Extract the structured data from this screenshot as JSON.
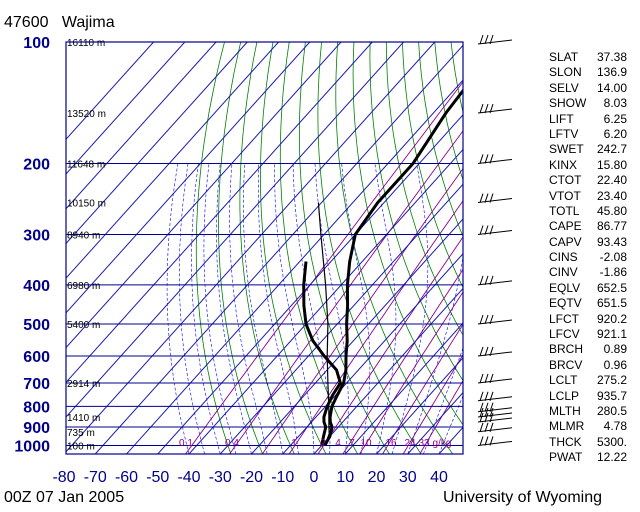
{
  "header": {
    "station_id": "47600",
    "station_name": "Wajima"
  },
  "footer": {
    "date": "00Z 07 Jan 2005",
    "source": "University of Wyoming"
  },
  "colors": {
    "frame": "#00008b",
    "isotherm": "#1a1ab4",
    "dry_adiabat": "#008000",
    "moist_adiabat": "#0000ff",
    "mixing_ratio": "#8b008b",
    "profile": "#000000"
  },
  "chart_data": {
    "type": "skew-t",
    "pressure_levels": [
      100,
      200,
      300,
      400,
      500,
      600,
      700,
      800,
      900,
      1000
    ],
    "pressure_labels": [
      "100",
      "200",
      "300",
      "400",
      "500",
      "600",
      "700",
      "800",
      "900",
      "1000"
    ],
    "temperature_ticks": [
      "-80",
      "-70",
      "-60",
      "-50",
      "-40",
      "-30",
      "-20",
      "-10",
      "0",
      "10",
      "20",
      "30",
      "40"
    ],
    "height_labels": [
      {
        "p": 100,
        "text": "16110 m"
      },
      {
        "p": 150,
        "text": "13520 m"
      },
      {
        "p": 200,
        "text": "11648 m"
      },
      {
        "p": 250,
        "text": "10150 m"
      },
      {
        "p": 300,
        "text": "8940 m"
      },
      {
        "p": 400,
        "text": "6980 m"
      },
      {
        "p": 500,
        "text": "5400 m"
      },
      {
        "p": 700,
        "text": "2914 m"
      },
      {
        "p": 850,
        "text": "1410 m"
      },
      {
        "p": 925,
        "text": "735 m"
      },
      {
        "p": 1000,
        "text": "100 m"
      }
    ],
    "mixing_ratio_labels": [
      "0.1",
      "0.4",
      "1",
      "2",
      "4",
      "7",
      "10",
      "16",
      "24",
      "33",
      "g/kg"
    ],
    "temperature_profile": [
      {
        "p": 1000,
        "t": 1
      },
      {
        "p": 975,
        "t": 0.5
      },
      {
        "p": 950,
        "t": 0
      },
      {
        "p": 925,
        "t": -1
      },
      {
        "p": 900,
        "t": -2
      },
      {
        "p": 875,
        "t": -4
      },
      {
        "p": 850,
        "t": -5.5
      },
      {
        "p": 800,
        "t": -8
      },
      {
        "p": 750,
        "t": -9.5
      },
      {
        "p": 700,
        "t": -11
      },
      {
        "p": 650,
        "t": -14
      },
      {
        "p": 600,
        "t": -18
      },
      {
        "p": 550,
        "t": -22
      },
      {
        "p": 500,
        "t": -27
      },
      {
        "p": 450,
        "t": -32
      },
      {
        "p": 400,
        "t": -38
      },
      {
        "p": 350,
        "t": -44
      },
      {
        "p": 300,
        "t": -50
      },
      {
        "p": 250,
        "t": -52
      },
      {
        "p": 200,
        "t": -52
      },
      {
        "p": 150,
        "t": -56
      },
      {
        "p": 100,
        "t": -59
      }
    ],
    "dewpoint_profile": [
      {
        "p": 1000,
        "t": 0
      },
      {
        "p": 975,
        "t": -1
      },
      {
        "p": 950,
        "t": -2
      },
      {
        "p": 925,
        "t": -3
      },
      {
        "p": 900,
        "t": -4
      },
      {
        "p": 875,
        "t": -6
      },
      {
        "p": 850,
        "t": -7.5
      },
      {
        "p": 800,
        "t": -9.5
      },
      {
        "p": 750,
        "t": -11
      },
      {
        "p": 700,
        "t": -12
      },
      {
        "p": 650,
        "t": -17
      },
      {
        "p": 600,
        "t": -25
      },
      {
        "p": 550,
        "t": -33
      },
      {
        "p": 500,
        "t": -40
      },
      {
        "p": 450,
        "t": -46
      },
      {
        "p": 400,
        "t": -52
      },
      {
        "p": 350,
        "t": -58
      }
    ],
    "parcel_profile": [
      {
        "p": 1000,
        "t": 1
      },
      {
        "p": 935,
        "t": -1
      },
      {
        "p": 900,
        "t": -3
      },
      {
        "p": 800,
        "t": -9
      },
      {
        "p": 700,
        "t": -16
      },
      {
        "p": 600,
        "t": -24
      },
      {
        "p": 500,
        "t": -33
      },
      {
        "p": 400,
        "t": -45
      },
      {
        "p": 300,
        "t": -61
      },
      {
        "p": 250,
        "t": -71
      }
    ],
    "wind_barb_levels": [
      100,
      150,
      200,
      250,
      300,
      400,
      500,
      600,
      700,
      775,
      825,
      850,
      875,
      925,
      1000
    ]
  },
  "indices": [
    {
      "label": "SLAT",
      "value": "37.38"
    },
    {
      "label": "SLON",
      "value": "136.9"
    },
    {
      "label": "SELV",
      "value": "14.00"
    },
    {
      "label": "SHOW",
      "value": "8.03"
    },
    {
      "label": "LIFT",
      "value": "6.25"
    },
    {
      "label": "LFTV",
      "value": "6.20"
    },
    {
      "label": "SWET",
      "value": "242.7"
    },
    {
      "label": "KINX",
      "value": "15.80"
    },
    {
      "label": "CTOT",
      "value": "22.40"
    },
    {
      "label": "VTOT",
      "value": "23.40"
    },
    {
      "label": "TOTL",
      "value": "45.80"
    },
    {
      "label": "CAPE",
      "value": "86.77"
    },
    {
      "label": "CAPV",
      "value": "93.43"
    },
    {
      "label": "CINS",
      "value": "-2.08"
    },
    {
      "label": "CINV",
      "value": "-1.86"
    },
    {
      "label": "EQLV",
      "value": "652.5"
    },
    {
      "label": "EQTV",
      "value": "651.5"
    },
    {
      "label": "LFCT",
      "value": "920.2"
    },
    {
      "label": "LFCV",
      "value": "921.1"
    },
    {
      "label": "BRCH",
      "value": "0.89"
    },
    {
      "label": "BRCV",
      "value": "0.96"
    },
    {
      "label": "LCLT",
      "value": "275.2"
    },
    {
      "label": "LCLP",
      "value": "935.7"
    },
    {
      "label": "MLTH",
      "value": "280.5"
    },
    {
      "label": "MLMR",
      "value": "4.78"
    },
    {
      "label": "THCK",
      "value": "5300."
    },
    {
      "label": "PWAT",
      "value": "12.22"
    }
  ]
}
